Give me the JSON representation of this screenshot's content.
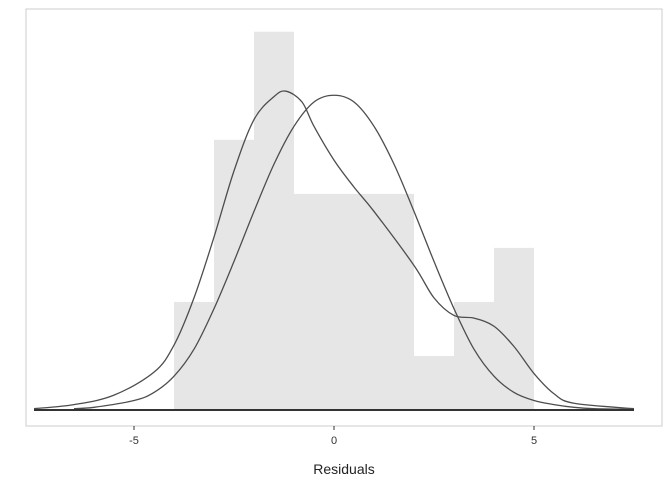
{
  "chart_data": {
    "type": "histogram",
    "xlabel": "Residuals",
    "ylabel": "",
    "title": "",
    "xlim": [
      -7.7,
      8.2
    ],
    "ylim": [
      0,
      0.285
    ],
    "grid": false,
    "x_ticks": [
      {
        "value": -5,
        "label": "-5"
      },
      {
        "value": 0,
        "label": "0"
      },
      {
        "value": 5,
        "label": "5"
      }
    ],
    "histogram": {
      "bins": [
        {
          "x0": -4,
          "x1": -3,
          "density": 0.08
        },
        {
          "x0": -3,
          "x1": -2,
          "density": 0.2
        },
        {
          "x0": -2,
          "x1": -1,
          "density": 0.28
        },
        {
          "x0": -1,
          "x1": 0,
          "density": 0.16
        },
        {
          "x0": 0,
          "x1": 1,
          "density": 0.16
        },
        {
          "x0": 1,
          "x1": 2,
          "density": 0.16
        },
        {
          "x0": 2,
          "x1": 3,
          "density": 0.04
        },
        {
          "x0": 3,
          "x1": 4,
          "density": 0.08
        },
        {
          "x0": 4,
          "x1": 5,
          "density": 0.12
        }
      ],
      "fill_color": "#e6e6e6"
    },
    "series": [
      {
        "values_x": [
          -7.5,
          -6.5,
          -5.5,
          -4.5,
          -4.0,
          -3.5,
          -3.0,
          -2.5,
          -2.0,
          -1.5,
          -1.2,
          -0.8,
          -0.5,
          0.0,
          0.5,
          1.0,
          2.0,
          2.5,
          3.0,
          3.5,
          4.0,
          4.5,
          5.0,
          5.5,
          6.0,
          7.5
        ],
        "values_y": [
          0.001,
          0.004,
          0.011,
          0.028,
          0.048,
          0.083,
          0.128,
          0.177,
          0.215,
          0.232,
          0.236,
          0.228,
          0.21,
          0.185,
          0.165,
          0.147,
          0.107,
          0.083,
          0.07,
          0.068,
          0.062,
          0.047,
          0.027,
          0.012,
          0.005,
          0.001
        ],
        "color": "#4d4d4d"
      },
      {
        "values_x": [
          -6.5,
          -6.0,
          -5.0,
          -4.5,
          -4.0,
          -3.5,
          -3.0,
          -2.5,
          -2.0,
          -1.5,
          -1.0,
          -0.5,
          0.0,
          0.5,
          1.0,
          1.5,
          2.0,
          2.5,
          3.0,
          3.5,
          4.0,
          4.5,
          5.0,
          5.5,
          6.0,
          6.5,
          7.5
        ],
        "values_y": [
          0.001,
          0.002,
          0.007,
          0.013,
          0.025,
          0.045,
          0.075,
          0.11,
          0.147,
          0.182,
          0.21,
          0.228,
          0.233,
          0.228,
          0.21,
          0.182,
          0.147,
          0.11,
          0.075,
          0.045,
          0.025,
          0.013,
          0.007,
          0.004,
          0.002,
          0.001,
          0.0005
        ],
        "color": "#4d4d4d"
      }
    ],
    "baseline_color": "#333333",
    "panel_border_color": "#cccccc"
  }
}
